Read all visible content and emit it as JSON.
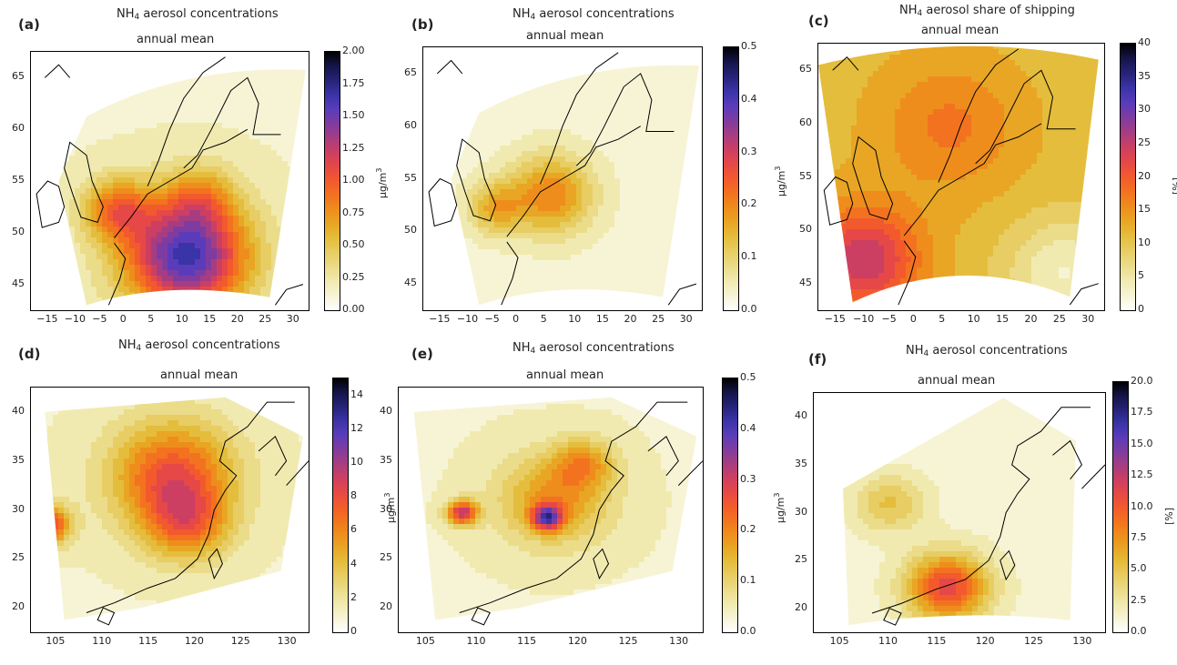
{
  "figure": {
    "panels": [
      {
        "letter": "(a)",
        "title": "NH4 aerosol concentrations",
        "subtitle": "annual mean",
        "region": "europe",
        "variable": "concentration",
        "xticks": [
          "−15",
          "−10",
          "−5",
          "0",
          "5",
          "10",
          "15",
          "20",
          "25",
          "30"
        ],
        "yticks": [
          "45",
          "50",
          "55",
          "60",
          "65"
        ],
        "colorbar": {
          "ticks": [
            "0.00",
            "0.25",
            "0.50",
            "0.75",
            "1.00",
            "1.25",
            "1.50",
            "1.75",
            "2.00"
          ],
          "unit": "µg/m3",
          "range": [
            0,
            2.0
          ]
        }
      },
      {
        "letter": "(b)",
        "title": "NH4 aerosol concentrations",
        "subtitle": "annual mean",
        "region": "europe",
        "variable": "shipping-concentration",
        "xticks": [
          "−15",
          "−10",
          "−5",
          "0",
          "5",
          "10",
          "15",
          "20",
          "25",
          "30"
        ],
        "yticks": [
          "45",
          "50",
          "55",
          "60",
          "65"
        ],
        "colorbar": {
          "ticks": [
            "0.0",
            "0.1",
            "0.2",
            "0.3",
            "0.4",
            "0.5"
          ],
          "unit": "µg/m3",
          "range": [
            0,
            0.5
          ]
        }
      },
      {
        "letter": "(c)",
        "title": "NH4 aerosol share of shipping",
        "subtitle": "annual mean",
        "region": "europe",
        "variable": "share",
        "xticks": [
          "−15",
          "−10",
          "−5",
          "0",
          "5",
          "10",
          "15",
          "20",
          "25",
          "30"
        ],
        "yticks": [
          "45",
          "50",
          "55",
          "60",
          "65"
        ],
        "colorbar": {
          "ticks": [
            "0",
            "5",
            "10",
            "15",
            "20",
            "25",
            "30",
            "35",
            "40"
          ],
          "unit": "[%]",
          "range": [
            0,
            40
          ]
        }
      },
      {
        "letter": "(d)",
        "title": "NH4 aerosol concentrations",
        "subtitle": "annual mean",
        "region": "china",
        "variable": "concentration",
        "xticks": [
          "105",
          "110",
          "115",
          "120",
          "125",
          "130"
        ],
        "yticks": [
          "20",
          "25",
          "30",
          "35",
          "40"
        ],
        "colorbar": {
          "ticks": [
            "0",
            "2",
            "4",
            "6",
            "8",
            "10",
            "12",
            "14"
          ],
          "unit": "µg/m3",
          "range": [
            0,
            15
          ]
        }
      },
      {
        "letter": "(e)",
        "title": "NH4 aerosol concentrations",
        "subtitle": "annual mean",
        "region": "china",
        "variable": "shipping-concentration",
        "xticks": [
          "105",
          "110",
          "115",
          "120",
          "125",
          "130"
        ],
        "yticks": [
          "20",
          "25",
          "30",
          "35",
          "40"
        ],
        "colorbar": {
          "ticks": [
            "0.0",
            "0.1",
            "0.2",
            "0.3",
            "0.4",
            "0.5"
          ],
          "unit": "µg/m3",
          "range": [
            0,
            0.5
          ]
        }
      },
      {
        "letter": "(f)",
        "title": "NH4 aerosol concentrations",
        "subtitle": "annual mean",
        "region": "china",
        "variable": "share",
        "xticks": [
          "105",
          "110",
          "115",
          "120",
          "125",
          "130"
        ],
        "yticks": [
          "20",
          "25",
          "30",
          "35",
          "40"
        ],
        "colorbar": {
          "ticks": [
            "0.0",
            "2.5",
            "5.0",
            "7.5",
            "10.0",
            "12.5",
            "15.0",
            "17.5",
            "20.0"
          ],
          "unit": "[%]",
          "range": [
            0,
            20
          ]
        }
      }
    ],
    "colormap": [
      "#ffffff",
      "#f7f4d6",
      "#f1eab0",
      "#ebdc8a",
      "#e7cd63",
      "#e5bd3c",
      "#e8a624",
      "#ee8d1c",
      "#f3721f",
      "#f25a2e",
      "#e54846",
      "#cc3f63",
      "#a63d82",
      "#7f3ca0",
      "#5a3cba",
      "#3b33a8",
      "#262378",
      "#15154a",
      "#000000"
    ],
    "coast_color": "#000000"
  }
}
